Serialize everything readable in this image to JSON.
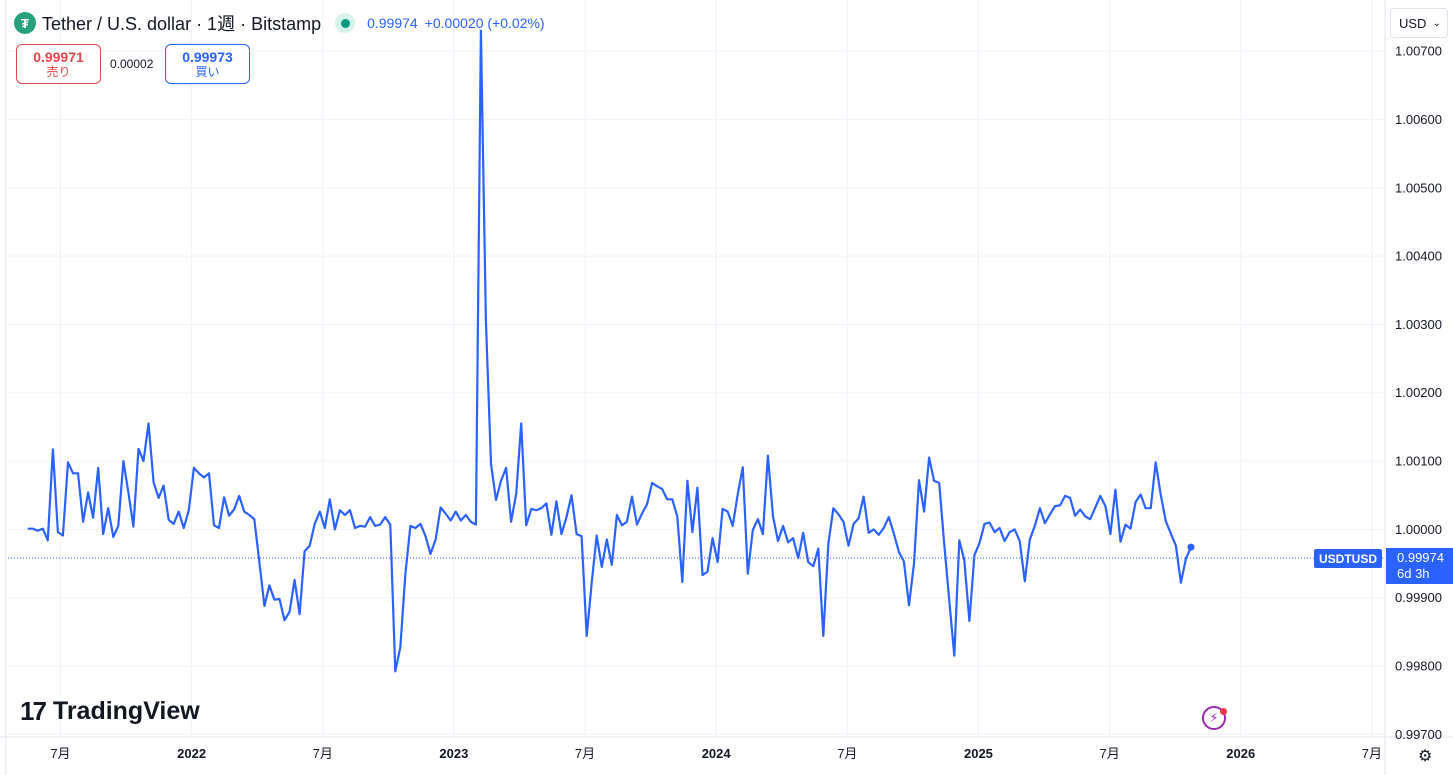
{
  "header": {
    "coin_glyph": "₮",
    "title": "Tether / U.S. dollar · 1週 · Bitstamp",
    "last_price": "0.99974",
    "change": "+0.00020 (+0.02%)"
  },
  "trade": {
    "sell_price": "0.99971",
    "sell_label": "売り",
    "spread": "0.00002",
    "buy_price": "0.99973",
    "buy_label": "買い"
  },
  "currency_select": {
    "value": "USD",
    "icon": "chevron-down-icon"
  },
  "branding": {
    "logo_mark": "17",
    "logo_text": "TradingView"
  },
  "badges": {
    "symbol": "USDTUSD",
    "price": "0.99974",
    "countdown": "6d 3h"
  },
  "colors": {
    "line": "#2962ff",
    "sell": "#e0474b",
    "buy": "#2962ff",
    "grid": "#f0f3fa",
    "live": "#089981"
  },
  "chart_data": {
    "type": "line",
    "series": [
      {
        "x_start": 2021.375,
        "x_step": 0.0192,
        "values": [
          1.00001,
          1.00001,
          0.99998,
          1.00001,
          0.99984,
          1.00117,
          0.99996,
          0.99991,
          1.00098,
          1.00082,
          1.00082,
          1.00011,
          1.00054,
          1.00017,
          1.0009,
          0.99993,
          1.00031,
          0.99989,
          1.00005,
          1.001,
          1.00054,
          1.00004,
          1.00118,
          1.001,
          1.00155,
          1.00069,
          1.00046,
          1.00064,
          1.00014,
          1.00008,
          1.00026,
          1.00002,
          1.00028,
          1.0009,
          1.00082,
          1.00076,
          1.00082,
          1.00006,
          1.00002,
          1.00047,
          1.0002,
          1.00029,
          1.00049,
          1.00026,
          1.00021,
          1.00015,
          0.99953,
          0.99888,
          0.99918,
          0.99897,
          0.99898,
          0.99867,
          0.99879,
          0.99926,
          0.99876,
          0.99968,
          0.99976,
          1.00008,
          1.00026,
          1.00002,
          1.00044,
          1.0,
          1.00028,
          1.00021,
          1.00028,
          1.00002,
          1.00005,
          1.00004,
          1.00018,
          1.00005,
          1.00007,
          1.00018,
          1.00007,
          0.99792,
          0.99827,
          0.99935,
          1.00005,
          1.00002,
          1.00008,
          0.9999,
          0.99964,
          0.99985,
          1.00032,
          1.00023,
          1.00013,
          1.00026,
          1.00013,
          1.00021,
          1.00011,
          1.00007,
          1.0073,
          1.00305,
          1.00096,
          1.00043,
          1.00071,
          1.0009,
          1.00011,
          1.00052,
          1.00155,
          1.00006,
          1.0003,
          1.00028,
          1.00031,
          1.00038,
          0.99992,
          1.00041,
          0.99993,
          1.00018,
          1.0005,
          0.99993,
          0.9999,
          0.99844,
          0.99922,
          0.99991,
          0.99945,
          0.99985,
          0.99948,
          1.00021,
          1.00006,
          1.00011,
          1.00048,
          1.00007,
          1.00023,
          1.00037,
          1.00068,
          1.00063,
          1.00059,
          1.00044,
          1.00044,
          1.00019,
          0.99923,
          1.00071,
          0.99996,
          1.00061,
          0.99933,
          0.99938,
          0.99987,
          0.99952,
          1.0003,
          1.00026,
          1.00005,
          1.00051,
          1.00091,
          0.99935,
          0.99999,
          1.00015,
          0.99993,
          1.00108,
          1.00019,
          0.99983,
          1.00005,
          0.99981,
          0.99987,
          0.99958,
          0.99995,
          0.99952,
          0.99946,
          0.99972,
          0.99844,
          0.9998,
          1.00031,
          1.00022,
          1.00011,
          0.99976,
          1.00008,
          1.00016,
          1.00048,
          0.99995,
          1.0,
          0.99992,
          1.00002,
          1.00018,
          0.99994,
          0.99967,
          0.99953,
          0.99889,
          0.9995,
          1.00072,
          1.00026,
          1.00105,
          1.00071,
          1.00068,
          0.99979,
          0.99897,
          0.99815,
          0.99984,
          0.99955,
          0.99866,
          0.99962,
          0.9998,
          1.00008,
          1.0001,
          0.99996,
          1.00002,
          0.99983,
          0.99996,
          1.0,
          0.99983,
          0.99924,
          0.99985,
          1.00005,
          1.00031,
          1.00009,
          1.00022,
          1.00034,
          1.00035,
          1.00049,
          1.00046,
          1.0002,
          1.00029,
          1.00019,
          1.00015,
          1.00032,
          1.00049,
          1.00034,
          0.99993,
          1.00058,
          0.99982,
          1.00007,
          1.00001,
          1.0004,
          1.00051,
          1.00031,
          1.00031,
          1.00098,
          1.00051,
          1.00012,
          0.99994,
          0.99976,
          0.99922,
          0.99957,
          0.99974
        ]
      }
    ],
    "x_ticks": [
      "7月",
      "2022",
      "7月",
      "2023",
      "7月",
      "2024",
      "7月",
      "2025",
      "7月",
      "2026",
      "7月"
    ],
    "x_tick_values": [
      2021.5,
      2022.0,
      2022.5,
      2023.0,
      2023.5,
      2024.0,
      2024.5,
      2025.0,
      2025.5,
      2026.0,
      2026.5
    ],
    "y_ticks": [
      "1.00700",
      "1.00600",
      "1.00500",
      "1.00400",
      "1.00300",
      "1.00200",
      "1.00100",
      "1.00000",
      "0.99900",
      "0.99800",
      "0.99700"
    ],
    "y_tick_values": [
      1.007,
      1.006,
      1.005,
      1.004,
      1.003,
      1.002,
      1.001,
      1.0,
      0.999,
      0.998,
      0.997
    ],
    "xlim": [
      2021.3,
      2026.55
    ],
    "ylim": [
      0.99696,
      1.00775
    ],
    "last_value": 0.99974,
    "grid": true
  }
}
